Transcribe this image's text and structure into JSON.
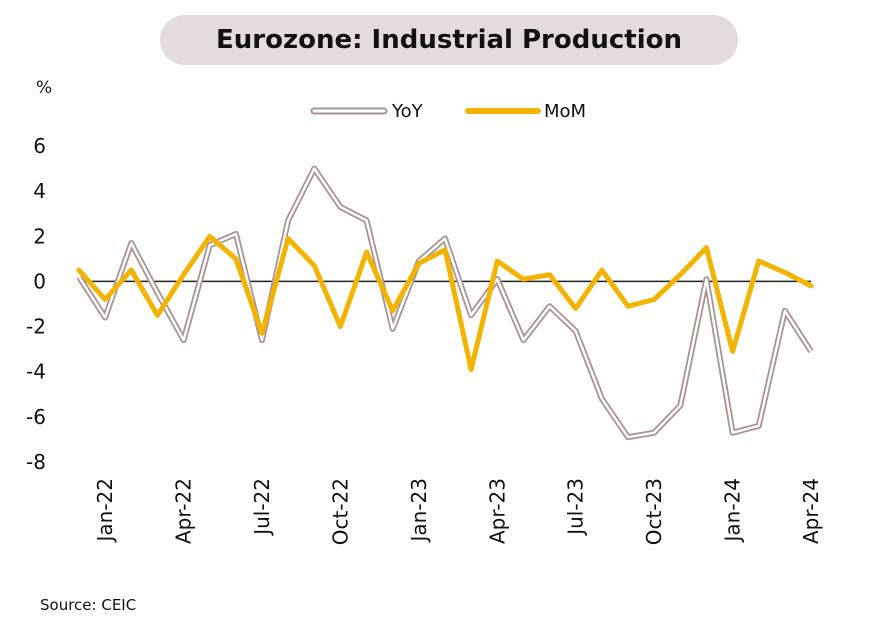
{
  "title": "Eurozone: Industrial Production",
  "unit_label": "%",
  "source": "Source: CEIC",
  "colors": {
    "yoy_outer": "#a89494",
    "yoy_inner": "#ffffff",
    "mom": "#f2b400",
    "zero_line": "#222222",
    "title_bg": "#e4dcdc"
  },
  "chart_data": {
    "type": "line",
    "title": "Eurozone: Industrial Production",
    "ylabel": "%",
    "ylim": [
      -8,
      6
    ],
    "yticks": [
      6,
      4,
      2,
      0,
      -2,
      -4,
      -6,
      -8
    ],
    "x": [
      "Dec-21",
      "Jan-22",
      "Feb-22",
      "Mar-22",
      "Apr-22",
      "May-22",
      "Jun-22",
      "Jul-22",
      "Aug-22",
      "Sep-22",
      "Oct-22",
      "Nov-22",
      "Dec-22",
      "Jan-23",
      "Feb-23",
      "Mar-23",
      "Apr-23",
      "May-23",
      "Jun-23",
      "Jul-23",
      "Aug-23",
      "Sep-23",
      "Oct-23",
      "Nov-23",
      "Dec-23",
      "Jan-24",
      "Feb-24",
      "Mar-24",
      "Apr-24"
    ],
    "xtick_labels": [
      "Jan-22",
      "Apr-22",
      "Jul-22",
      "Oct-22",
      "Jan-23",
      "Apr-23",
      "Jul-23",
      "Oct-23",
      "Jan-24",
      "Apr-24"
    ],
    "legend_position": "top",
    "series": [
      {
        "name": "YoY",
        "style": "double-line",
        "values": [
          0.2,
          -1.6,
          1.7,
          -0.5,
          -2.6,
          1.6,
          2.1,
          -2.6,
          2.7,
          5.0,
          3.3,
          2.7,
          -2.1,
          0.9,
          1.9,
          -1.5,
          0.1,
          -2.6,
          -1.1,
          -2.2,
          -5.2,
          -6.9,
          -6.7,
          -5.5,
          0.1,
          -6.7,
          -6.4,
          -1.3,
          -3.1
        ]
      },
      {
        "name": "MoM",
        "style": "solid",
        "values": [
          0.5,
          -0.8,
          0.5,
          -1.5,
          0.3,
          2.0,
          1.0,
          -2.3,
          1.9,
          0.7,
          -2.0,
          1.3,
          -1.3,
          0.8,
          1.4,
          -3.9,
          0.9,
          0.1,
          0.3,
          -1.2,
          0.5,
          -1.1,
          -0.8,
          0.3,
          1.5,
          -3.1,
          0.9,
          0.4,
          -0.2
        ]
      }
    ]
  }
}
